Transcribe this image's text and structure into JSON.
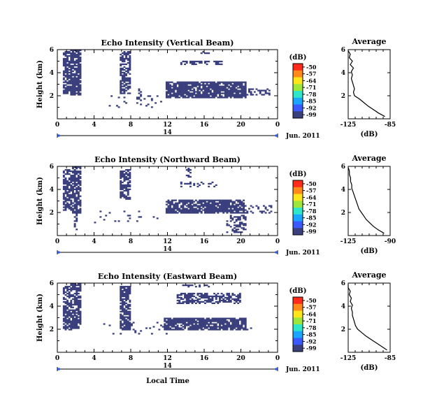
{
  "figure": {
    "xlabel": "Local Time",
    "date_label": "14",
    "month_label": "Jun. 2011",
    "echo_color": "#3a3f7d",
    "colorbar": {
      "unit": "(dB)",
      "ticks": [
        "-50",
        "-57",
        "-64",
        "-71",
        "-78",
        "-85",
        "-92",
        "-99"
      ],
      "colors": [
        "#ff2a1a",
        "#ff8a1a",
        "#ffe61a",
        "#9de63a",
        "#2ee6c8",
        "#1aa6ff",
        "#3a5aff",
        "#3a3f7d"
      ]
    }
  },
  "chart_data": [
    {
      "type": "heatmap",
      "title": "Echo Intensity (Vertical Beam)",
      "ylabel": "Height (km)",
      "xlim": [
        0,
        24
      ],
      "ylim": [
        0,
        6
      ],
      "xticks": [
        "0",
        "4",
        "8",
        "12",
        "16",
        "20",
        "0"
      ],
      "yticks": [
        "2",
        "4",
        "6"
      ],
      "zrange": [
        -99,
        -50
      ],
      "regions": [
        {
          "x0": 0.7,
          "x1": 1.5,
          "y0": 2.1,
          "y1": 5.9,
          "density": 0.75
        },
        {
          "x0": 1.5,
          "x1": 2.6,
          "y0": 2.0,
          "y1": 6.0,
          "density": 0.85
        },
        {
          "x0": 6.8,
          "x1": 8.0,
          "y0": 2.2,
          "y1": 5.9,
          "density": 0.7
        },
        {
          "x0": 11.8,
          "x1": 20.6,
          "y0": 1.8,
          "y1": 3.3,
          "density": 0.85
        },
        {
          "x0": 13.5,
          "x1": 18.0,
          "y0": 4.7,
          "y1": 5.0,
          "density": 0.6
        },
        {
          "x0": 15.6,
          "x1": 16.6,
          "y0": 5.6,
          "y1": 5.9,
          "density": 0.5
        },
        {
          "x0": 20.6,
          "x1": 23.2,
          "y0": 2.0,
          "y1": 2.6,
          "density": 0.35
        },
        {
          "x0": 8.6,
          "x1": 9.2,
          "y0": 1.2,
          "y1": 2.8,
          "density": 0.3
        },
        {
          "x0": 5.5,
          "x1": 11.5,
          "y0": 1.0,
          "y1": 2.3,
          "density": 0.05
        }
      ],
      "profile": {
        "title": "Average",
        "xlabel": "(dB)",
        "xlim": [
          -125,
          -85
        ],
        "xticks": [
          "-125",
          "-85"
        ],
        "ylim": [
          0,
          6
        ],
        "yticks": [
          "2",
          "4",
          "6"
        ],
        "height": [
          0.2,
          0.5,
          0.8,
          1.1,
          1.4,
          1.7,
          2.0,
          2.3,
          2.6,
          2.9,
          3.2,
          3.5,
          3.8,
          4.1,
          4.4,
          4.7,
          5.0,
          5.3,
          5.6,
          5.9
        ],
        "value": [
          -90,
          -96,
          -101,
          -106,
          -110,
          -114,
          -119,
          -120,
          -119,
          -120,
          -121,
          -122,
          -121,
          -122,
          -120,
          -123,
          -121,
          -124,
          -123,
          -125
        ]
      }
    },
    {
      "type": "heatmap",
      "title": "Echo Intensity (Northward Beam)",
      "ylabel": "Height (km)",
      "xlim": [
        0,
        24
      ],
      "ylim": [
        0,
        6
      ],
      "xticks": [
        "0",
        "4",
        "8",
        "12",
        "16",
        "20",
        "0"
      ],
      "yticks": [
        "2",
        "4",
        "6"
      ],
      "zrange": [
        -99,
        -50
      ],
      "regions": [
        {
          "x0": 0.7,
          "x1": 1.6,
          "y0": 2.0,
          "y1": 5.8,
          "density": 0.7
        },
        {
          "x0": 1.6,
          "x1": 2.6,
          "y0": 1.9,
          "y1": 6.0,
          "density": 0.8
        },
        {
          "x0": 6.8,
          "x1": 8.0,
          "y0": 3.1,
          "y1": 5.8,
          "density": 0.7
        },
        {
          "x0": 11.8,
          "x1": 20.4,
          "y0": 1.9,
          "y1": 3.1,
          "density": 0.85
        },
        {
          "x0": 13.5,
          "x1": 17.5,
          "y0": 4.2,
          "y1": 4.7,
          "density": 0.35
        },
        {
          "x0": 14.0,
          "x1": 14.5,
          "y0": 5.0,
          "y1": 5.9,
          "density": 0.4
        },
        {
          "x0": 18.5,
          "x1": 20.5,
          "y0": 0.2,
          "y1": 1.8,
          "density": 0.35
        },
        {
          "x0": 20.5,
          "x1": 23.3,
          "y0": 1.9,
          "y1": 2.6,
          "density": 0.3
        },
        {
          "x0": 1.8,
          "x1": 2.3,
          "y0": 0.4,
          "y1": 1.9,
          "density": 0.35
        },
        {
          "x0": 4.0,
          "x1": 11.5,
          "y0": 1.0,
          "y1": 2.5,
          "density": 0.05
        }
      ],
      "profile": {
        "title": "Average",
        "xlabel": "(dB)",
        "xlim": [
          -125,
          -90
        ],
        "xticks": [
          "-125",
          "-90"
        ],
        "ylim": [
          0,
          6
        ],
        "yticks": [
          "2",
          "4",
          "6"
        ],
        "height": [
          0.2,
          0.5,
          0.8,
          1.1,
          1.4,
          1.7,
          2.0,
          2.3,
          2.6,
          2.9,
          3.2,
          3.5,
          3.8,
          4.1,
          4.4,
          4.7,
          5.0,
          5.3,
          5.6,
          5.9
        ],
        "value": [
          -95,
          -100,
          -104,
          -107,
          -110,
          -112,
          -114,
          -116,
          -117,
          -118,
          -119,
          -120,
          -121,
          -122,
          -122,
          -123,
          -123,
          -124,
          -124,
          -125
        ]
      }
    },
    {
      "type": "heatmap",
      "title": "Echo Intensity (Eastward Beam)",
      "ylabel": "Height (km)",
      "xlim": [
        0,
        24
      ],
      "ylim": [
        0,
        6
      ],
      "xticks": [
        "0",
        "4",
        "8",
        "12",
        "16",
        "20",
        "0"
      ],
      "yticks": [
        "2",
        "4",
        "6"
      ],
      "zrange": [
        -99,
        -50
      ],
      "regions": [
        {
          "x0": 0.7,
          "x1": 1.5,
          "y0": 1.9,
          "y1": 5.8,
          "density": 0.7
        },
        {
          "x0": 1.5,
          "x1": 2.6,
          "y0": 2.0,
          "y1": 6.0,
          "density": 0.8
        },
        {
          "x0": 6.8,
          "x1": 8.0,
          "y0": 1.9,
          "y1": 5.7,
          "density": 0.7
        },
        {
          "x0": 11.6,
          "x1": 20.6,
          "y0": 1.9,
          "y1": 3.0,
          "density": 0.85
        },
        {
          "x0": 13.0,
          "x1": 20.0,
          "y0": 4.2,
          "y1": 5.1,
          "density": 0.55
        },
        {
          "x0": 13.5,
          "x1": 16.5,
          "y0": 5.6,
          "y1": 5.9,
          "density": 0.4
        },
        {
          "x0": 20.0,
          "x1": 21.3,
          "y0": 1.9,
          "y1": 2.2,
          "density": 0.3
        },
        {
          "x0": 5.0,
          "x1": 12.0,
          "y0": 1.5,
          "y1": 2.6,
          "density": 0.05
        }
      ],
      "profile": {
        "title": "Average",
        "xlabel": "(dB)",
        "xlim": [
          -125,
          -85
        ],
        "xticks": [
          "-125",
          "-85"
        ],
        "ylim": [
          0,
          6
        ],
        "yticks": [
          "2",
          "4",
          "6"
        ],
        "height": [
          0.2,
          0.5,
          0.8,
          1.1,
          1.4,
          1.7,
          2.0,
          2.3,
          2.6,
          2.9,
          3.2,
          3.5,
          3.8,
          4.1,
          4.4,
          4.7,
          5.0,
          5.3,
          5.6,
          5.9
        ],
        "value": [
          -88,
          -93,
          -98,
          -103,
          -108,
          -112,
          -116,
          -118,
          -119,
          -120,
          -121,
          -121,
          -122,
          -121,
          -123,
          -122,
          -124,
          -123,
          -125,
          -125
        ]
      }
    }
  ]
}
